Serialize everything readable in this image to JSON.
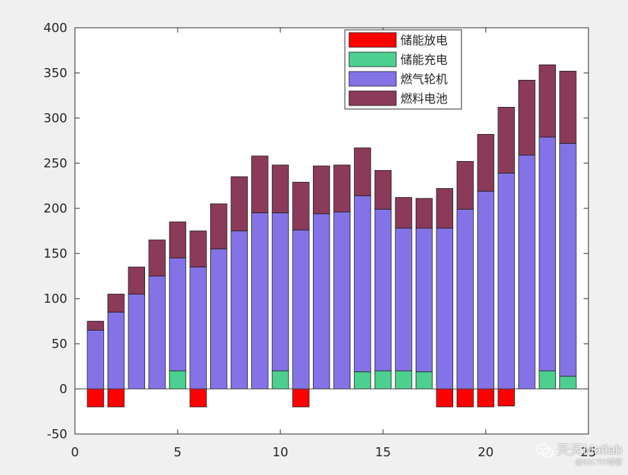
{
  "chart_data": {
    "type": "bar",
    "stacked": true,
    "x": [
      1,
      2,
      3,
      4,
      5,
      6,
      7,
      8,
      9,
      10,
      11,
      12,
      13,
      14,
      15,
      16,
      17,
      18,
      19,
      20,
      21,
      22,
      23,
      24
    ],
    "xlim": [
      0,
      25
    ],
    "ylim": [
      -50,
      400
    ],
    "xticks": [
      0,
      5,
      10,
      15,
      20,
      25
    ],
    "yticks": [
      -50,
      0,
      50,
      100,
      150,
      200,
      250,
      300,
      350,
      400
    ],
    "xtick_labels": [
      "0",
      "5",
      "10",
      "15",
      "20",
      "25"
    ],
    "ytick_labels": [
      "-50",
      "0",
      "50",
      "100",
      "150",
      "200",
      "250",
      "300",
      "350",
      "400"
    ],
    "grid": false,
    "legend_position": "top-right",
    "series": [
      {
        "name": "储能放电",
        "color": "#ff0000",
        "values": [
          -20,
          -20,
          0,
          0,
          0,
          -20,
          0,
          0,
          0,
          0,
          -20,
          0,
          0,
          0,
          0,
          0,
          0,
          -20,
          -20,
          -20,
          -19,
          0,
          0,
          0
        ]
      },
      {
        "name": "储能充电",
        "color": "#4dcf8f",
        "values": [
          0,
          0,
          0,
          0,
          20,
          0,
          0,
          0,
          0,
          20,
          0,
          0,
          0,
          19,
          20,
          20,
          19,
          0,
          0,
          0,
          0,
          0,
          20,
          14
        ]
      },
      {
        "name": "燃气轮机",
        "color": "#8473e6",
        "values": [
          65,
          85,
          105,
          125,
          125,
          135,
          155,
          175,
          195,
          175,
          176,
          194,
          196,
          195,
          179,
          158,
          159,
          178,
          199,
          219,
          239,
          259,
          259,
          258
        ]
      },
      {
        "name": "燃料电池",
        "color": "#8b3a5a",
        "values": [
          10,
          20,
          30,
          40,
          40,
          40,
          50,
          60,
          63,
          53,
          53,
          53,
          52,
          53,
          43,
          34,
          33,
          44,
          53,
          63,
          73,
          83,
          80,
          80
        ]
      }
    ]
  },
  "watermark": {
    "icon": "wechat-icon",
    "channel": "天天Matlab",
    "source": "@51CTO博客"
  }
}
